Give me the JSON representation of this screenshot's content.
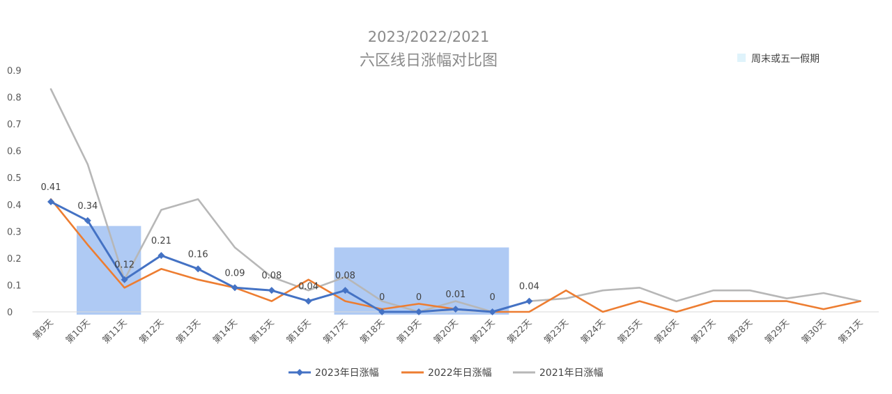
{
  "chart_data": {
    "type": "line",
    "title_line1": "2023/2022/2021",
    "title_line2": "六区线日涨幅对比图",
    "xlabel": "",
    "ylabel": "",
    "ylim": [
      0,
      0.9
    ],
    "y_ticks": [
      "0",
      "0.1",
      "0.2",
      "0.3",
      "0.4",
      "0.5",
      "0.6",
      "0.7",
      "0.8",
      "0.9"
    ],
    "grid": false,
    "legend_position": "bottom",
    "categories": [
      "第9天",
      "第10天",
      "第11天",
      "第12天",
      "第13天",
      "第14天",
      "第15天",
      "第16天",
      "第17天",
      "第18天",
      "第19天",
      "第20天",
      "第21天",
      "第22天",
      "第23天",
      "第24天",
      "第25天",
      "第26天",
      "第27天",
      "第28天",
      "第29天",
      "第30天",
      "第31天"
    ],
    "series": [
      {
        "name": "2023年日涨幅",
        "color": "#4472c4",
        "marker": "diamond",
        "values": [
          0.41,
          0.34,
          0.12,
          0.21,
          0.16,
          0.09,
          0.08,
          0.04,
          0.08,
          0,
          0,
          0.01,
          0,
          0.04,
          null,
          null,
          null,
          null,
          null,
          null,
          null,
          null,
          null
        ],
        "data_labels": [
          "0.41",
          "0.34",
          "0.12",
          "0.21",
          "0.16",
          "0.09",
          "0.08",
          "0.04",
          "0.08",
          "0",
          "0",
          "0.01",
          "0",
          "0.04",
          "",
          "",
          "",
          "",
          "",
          "",
          "",
          "",
          ""
        ]
      },
      {
        "name": "2022年日涨幅",
        "color": "#ed7d31",
        "marker": "none",
        "values": [
          0.42,
          0.25,
          0.09,
          0.16,
          0.12,
          0.09,
          0.04,
          0.12,
          0.04,
          0.01,
          0.03,
          0.01,
          0,
          0,
          0.08,
          0,
          0.04,
          0,
          0.04,
          0.04,
          0.04,
          0.01,
          0.04
        ]
      },
      {
        "name": "2021年日涨幅",
        "color": "#b7b7b7",
        "marker": "none",
        "values": [
          0.83,
          0.55,
          0.12,
          0.38,
          0.42,
          0.24,
          0.13,
          0.08,
          0.13,
          0.04,
          0,
          0.04,
          0,
          0.04,
          0.05,
          0.08,
          0.09,
          0.04,
          0.08,
          0.08,
          0.05,
          0.07,
          0.04
        ]
      }
    ],
    "highlight_legend_label": "周末或五一假期",
    "highlight_color": "#6d9eeb",
    "highlight_ranges": [
      {
        "from": "第10天",
        "to": "第11天",
        "ymax": 0.32
      },
      {
        "from": "第17天",
        "to": "第21天",
        "ymax": 0.24
      }
    ]
  }
}
